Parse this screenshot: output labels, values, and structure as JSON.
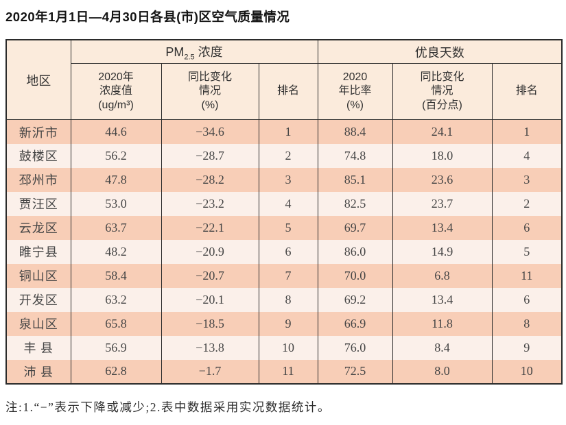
{
  "page": {
    "title": "2020年1月1日—4月30日各县(市)区空气质量情况",
    "note": "注:1.“−”表示下降或减少;2.表中数据采用实况数据统计。"
  },
  "colors": {
    "row_alt_bg": "#f8ceb7",
    "row_base_bg": "#fbf0ea",
    "header_bg": "#fbebdc",
    "border": "#2b2b2b",
    "text": "#454545"
  },
  "table": {
    "header": {
      "region": "地区",
      "group_pm25": {
        "prefix": "PM",
        "sub": "2.5",
        "suffix": " 浓度"
      },
      "group_good_days": "优良天数",
      "sub_headers": {
        "pm25_value": "2020年\n浓度值\n(ug/m³)",
        "pm25_change": "同比变化\n情况\n(%)",
        "pm25_rank": "排名",
        "good_rate": "2020\n年比率\n(%)",
        "good_change": "同比变化\n情况\n(百分点)",
        "good_rank": "排名"
      }
    },
    "rows": [
      {
        "region": "新沂市",
        "pm25_value": "44.6",
        "pm25_change": "−34.6",
        "pm25_rank": "1",
        "good_rate": "88.4",
        "good_change": "24.1",
        "good_rank": "1"
      },
      {
        "region": "鼓楼区",
        "pm25_value": "56.2",
        "pm25_change": "−28.7",
        "pm25_rank": "2",
        "good_rate": "74.8",
        "good_change": "18.0",
        "good_rank": "4"
      },
      {
        "region": "邳州市",
        "pm25_value": "47.8",
        "pm25_change": "−28.2",
        "pm25_rank": "3",
        "good_rate": "85.1",
        "good_change": "23.6",
        "good_rank": "3"
      },
      {
        "region": "贾汪区",
        "pm25_value": "53.0",
        "pm25_change": "−23.2",
        "pm25_rank": "4",
        "good_rate": "82.5",
        "good_change": "23.7",
        "good_rank": "2"
      },
      {
        "region": "云龙区",
        "pm25_value": "63.7",
        "pm25_change": "−22.1",
        "pm25_rank": "5",
        "good_rate": "69.7",
        "good_change": "13.4",
        "good_rank": "6"
      },
      {
        "region": "睢宁县",
        "pm25_value": "48.2",
        "pm25_change": "−20.9",
        "pm25_rank": "6",
        "good_rate": "86.0",
        "good_change": "14.9",
        "good_rank": "5"
      },
      {
        "region": "铜山区",
        "pm25_value": "58.4",
        "pm25_change": "−20.7",
        "pm25_rank": "7",
        "good_rate": "70.0",
        "good_change": "6.8",
        "good_rank": "11"
      },
      {
        "region": "开发区",
        "pm25_value": "63.2",
        "pm25_change": "−20.1",
        "pm25_rank": "8",
        "good_rate": "69.2",
        "good_change": "13.4",
        "good_rank": "6"
      },
      {
        "region": "泉山区",
        "pm25_value": "65.8",
        "pm25_change": "−18.5",
        "pm25_rank": "9",
        "good_rate": "66.9",
        "good_change": "11.8",
        "good_rank": "8"
      },
      {
        "region": "丰 县",
        "pm25_value": "56.9",
        "pm25_change": "−13.8",
        "pm25_rank": "10",
        "good_rate": "76.0",
        "good_change": "8.4",
        "good_rank": "9"
      },
      {
        "region": "沛 县",
        "pm25_value": "62.8",
        "pm25_change": "−1.7",
        "pm25_rank": "11",
        "good_rate": "72.5",
        "good_change": "8.0",
        "good_rank": "10"
      }
    ]
  }
}
